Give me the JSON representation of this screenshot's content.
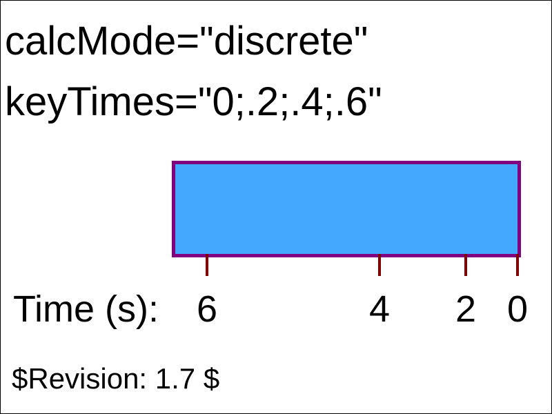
{
  "heading": {
    "calc_mode": "calcMode=\"discrete\"",
    "key_times": "keyTimes=\"0;.2;.4;.6\""
  },
  "bar": {
    "fill_color": "#44a8ff",
    "stroke_color": "#800080"
  },
  "timeline": {
    "label": "Time (s):",
    "tick_color": "#800000",
    "ticks": [
      "6",
      "4",
      "2",
      "0"
    ]
  },
  "revision": "$Revision: 1.7 $"
}
